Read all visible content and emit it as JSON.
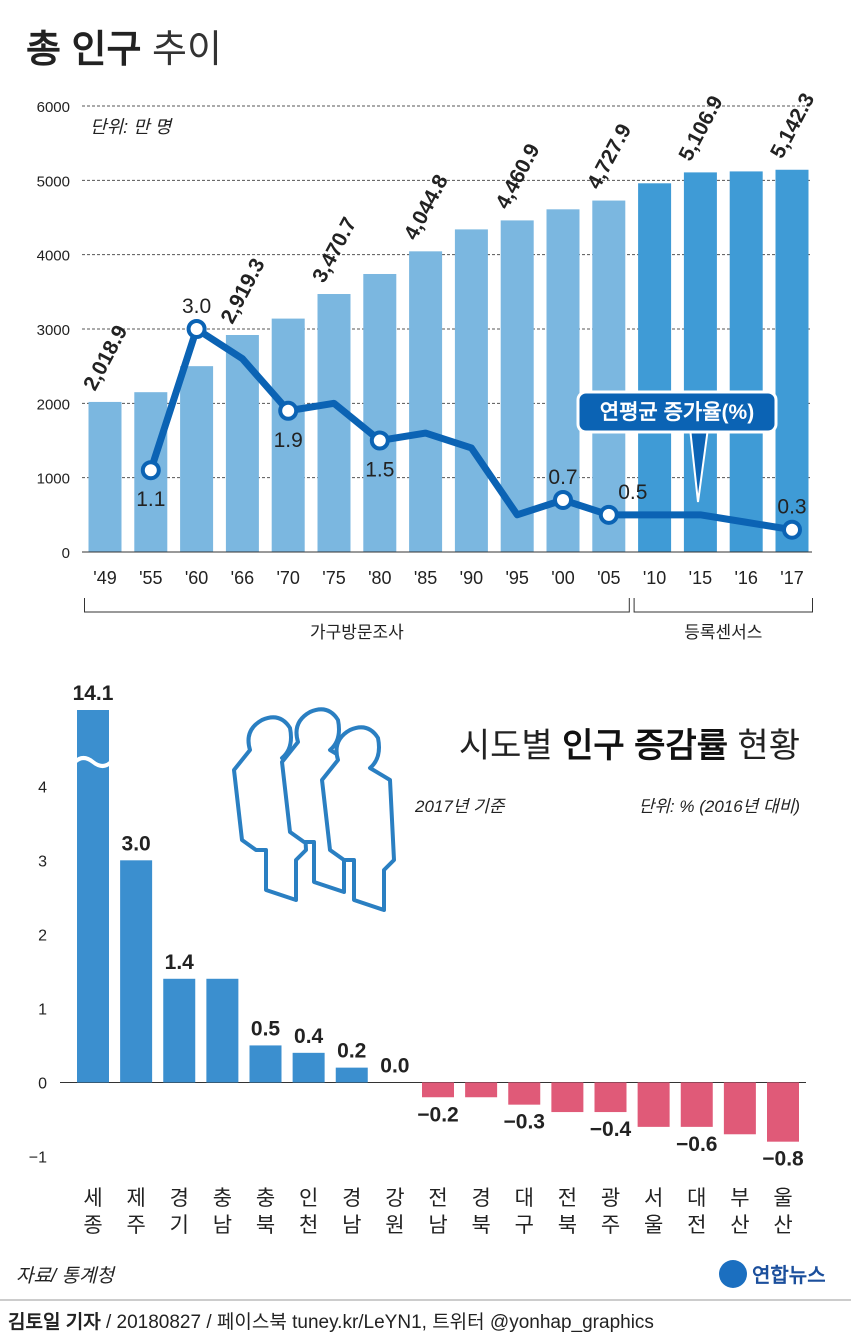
{
  "chart_data": [
    {
      "type": "bar_line",
      "title": [
        "총 인구",
        "추이"
      ],
      "unit": "단위: 만 명",
      "categories": [
        "'49",
        "'55",
        "'60",
        "'66",
        "'70",
        "'75",
        "'80",
        "'85",
        "'90",
        "'95",
        "'00",
        "'05",
        "'10",
        "'15",
        "'16",
        "'17"
      ],
      "values": [
        2018.9,
        2150,
        2500,
        2919.3,
        3140,
        3470.7,
        3740,
        4044.8,
        4340,
        4460.9,
        4610,
        4727.9,
        4960,
        5106.9,
        5120,
        5142.3
      ],
      "value_labels": [
        "2,018.9",
        null,
        null,
        "2,919.3",
        null,
        "3,470.7",
        null,
        "4,044.8",
        null,
        "4,460.9",
        null,
        "4,727.9",
        null,
        "5,106.9",
        null,
        "5,142.3"
      ],
      "groups": [
        {
          "label": "가구방문조사",
          "start": 0,
          "end": 11,
          "color": "#7bb7e0"
        },
        {
          "label": "등록센서스",
          "start": 12,
          "end": 15,
          "color": "#3f9bd6"
        }
      ],
      "ylim": [
        0,
        6000
      ],
      "yticks": [
        0,
        1000,
        2000,
        3000,
        4000,
        5000,
        6000
      ],
      "grid": true,
      "line": {
        "name": "연평균 증가율(%)",
        "color": "#0b63b4",
        "axis": "y2",
        "values": [
          null,
          1.1,
          3.0,
          2.6,
          1.9,
          2.0,
          1.5,
          1.6,
          1.4,
          0.5,
          0.7,
          0.5,
          0.5,
          0.5,
          0.4,
          0.3
        ],
        "value_labels": [
          null,
          "1.1",
          "3.0",
          null,
          "1.9",
          null,
          "1.5",
          null,
          null,
          null,
          "0.7",
          "0.5",
          null,
          null,
          null,
          "0.3"
        ]
      },
      "y2lim": [
        0,
        6
      ]
    },
    {
      "type": "bar",
      "title": [
        "시도별 ",
        "인구 증감률",
        " 현황"
      ],
      "notes": [
        "2017년 기준",
        "단위: % (2016년 대비)"
      ],
      "categories": [
        "세종",
        "제주",
        "경기",
        "충남",
        "충북",
        "인천",
        "경남",
        "강원",
        "전남",
        "경북",
        "대구",
        "전북",
        "광주",
        "서울",
        "대전",
        "부산",
        "울산"
      ],
      "values": [
        14.1,
        3.0,
        1.4,
        1.4,
        0.5,
        0.4,
        0.2,
        0.0,
        -0.2,
        -0.2,
        -0.3,
        -0.4,
        -0.4,
        -0.6,
        -0.6,
        -0.7,
        -0.8
      ],
      "value_labels": [
        "14.1",
        "3.0",
        "1.4",
        null,
        "0.5",
        "0.4",
        "0.2",
        "0.0",
        "−0.2",
        null,
        "−0.3",
        null,
        "−0.4",
        null,
        "−0.6",
        null,
        "−0.8"
      ],
      "colors": {
        "positive": "#3b8fcf",
        "negative": "#e05a78"
      },
      "ylim": [
        -1.25,
        5.03
      ],
      "yticks": [
        {
          "value": -1,
          "label": "−1"
        },
        0,
        1,
        2,
        3,
        4
      ],
      "axis_break": true
    }
  ],
  "source": "자료/ 통계청",
  "logo": "연합뉴스",
  "credit": [
    "김토일 기자",
    " / 20180827 / 페이스북 tuney.kr/LeYN1, 트위터 @yonhap_graphics"
  ]
}
